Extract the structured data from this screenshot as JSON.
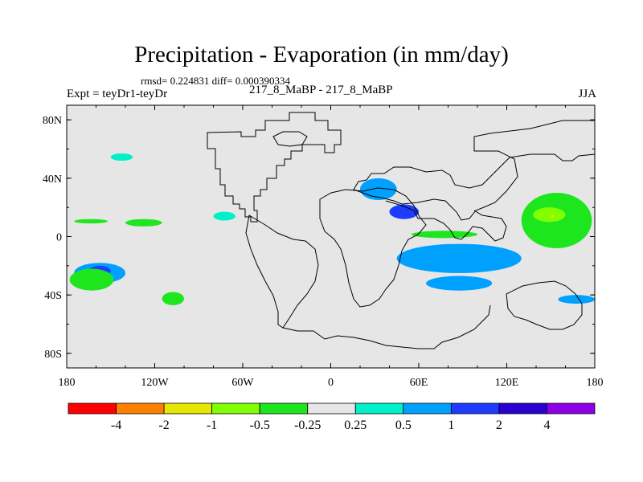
{
  "chart_data": {
    "type": "heatmap",
    "title": "Precipitation - Evaporation (in mm/day)",
    "stats": "rmsd= 0.224831 diff= 0.000390334",
    "experiment": "Expt = teyDr1-teyDr",
    "case": "217_8_MaBP - 217_8_MaBP",
    "season": "JJA",
    "x_range": [
      -180,
      180
    ],
    "y_range": [
      -90,
      90
    ],
    "x_ticks": [
      {
        "value": -180,
        "label": "180"
      },
      {
        "value": -120,
        "label": "120W"
      },
      {
        "value": -60,
        "label": "60W"
      },
      {
        "value": 0,
        "label": "0"
      },
      {
        "value": 60,
        "label": "60E"
      },
      {
        "value": 120,
        "label": "120E"
      },
      {
        "value": 180,
        "label": "180"
      }
    ],
    "y_ticks": [
      {
        "value": 80,
        "label": "80N"
      },
      {
        "value": 40,
        "label": "40N"
      },
      {
        "value": 0,
        "label": "0"
      },
      {
        "value": -40,
        "label": "40S"
      },
      {
        "value": -80,
        "label": "80S"
      }
    ],
    "colorbar": {
      "colors": [
        "#ff0000",
        "#ff8000",
        "#e6e600",
        "#80ff00",
        "#1ee61e",
        "#e6e6e6",
        "#00f0c8",
        "#00a0ff",
        "#1e3cff",
        "#2800d2",
        "#8c00e6"
      ],
      "labels": [
        "-4",
        "-2",
        "-1",
        "-0.5",
        "-0.25",
        "0.25",
        "0.5",
        "1",
        "2",
        "4"
      ]
    },
    "anomaly_regions": [
      {
        "lon": [
          -175,
          -140
        ],
        "lat": [
          -18,
          -32
        ],
        "level": "0.5"
      },
      {
        "lon": [
          -165,
          -150
        ],
        "lat": [
          -20,
          -27
        ],
        "level": "1"
      },
      {
        "lon": [
          -178,
          -148
        ],
        "lat": [
          -22,
          -37
        ],
        "level": "-0.25"
      },
      {
        "lon": [
          -175,
          -152
        ],
        "lat": [
          12,
          9
        ],
        "level": "-0.25"
      },
      {
        "lon": [
          -140,
          -115
        ],
        "lat": [
          12,
          7
        ],
        "level": "-0.25"
      },
      {
        "lon": [
          -150,
          -135
        ],
        "lat": [
          57,
          52
        ],
        "level": "0.25"
      },
      {
        "lon": [
          -80,
          -65
        ],
        "lat": [
          17,
          11
        ],
        "level": "0.25"
      },
      {
        "lon": [
          25,
          35
        ],
        "lat": [
          37,
          27
        ],
        "level": "1"
      },
      {
        "lon": [
          20,
          45
        ],
        "lat": [
          40,
          25
        ],
        "level": "0.5"
      },
      {
        "lon": [
          40,
          60
        ],
        "lat": [
          22,
          12
        ],
        "level": "1"
      },
      {
        "lon": [
          50,
          120
        ],
        "lat": [
          -10,
          -20
        ],
        "level": "1"
      },
      {
        "lon": [
          55,
          105
        ],
        "lat": [
          -12,
          -18
        ],
        "level": "2"
      },
      {
        "lon": [
          45,
          130
        ],
        "lat": [
          -5,
          -25
        ],
        "level": "0.5"
      },
      {
        "lon": [
          55,
          100
        ],
        "lat": [
          4,
          -1
        ],
        "level": "-0.25"
      },
      {
        "lon": [
          130,
          178
        ],
        "lat": [
          30,
          -8
        ],
        "level": "-0.25"
      },
      {
        "lon": [
          138,
          160
        ],
        "lat": [
          20,
          10
        ],
        "level": "-0.5"
      },
      {
        "lon": [
          150,
          152
        ],
        "lat": [
          15,
          13
        ],
        "level": "-1"
      },
      {
        "lon": [
          65,
          110
        ],
        "lat": [
          -27,
          -37
        ],
        "level": "0.5"
      },
      {
        "lon": [
          155,
          180
        ],
        "lat": [
          -40,
          -46
        ],
        "level": "0.5"
      },
      {
        "lon": [
          -115,
          -100
        ],
        "lat": [
          -38,
          -47
        ],
        "level": "-0.25"
      }
    ]
  }
}
